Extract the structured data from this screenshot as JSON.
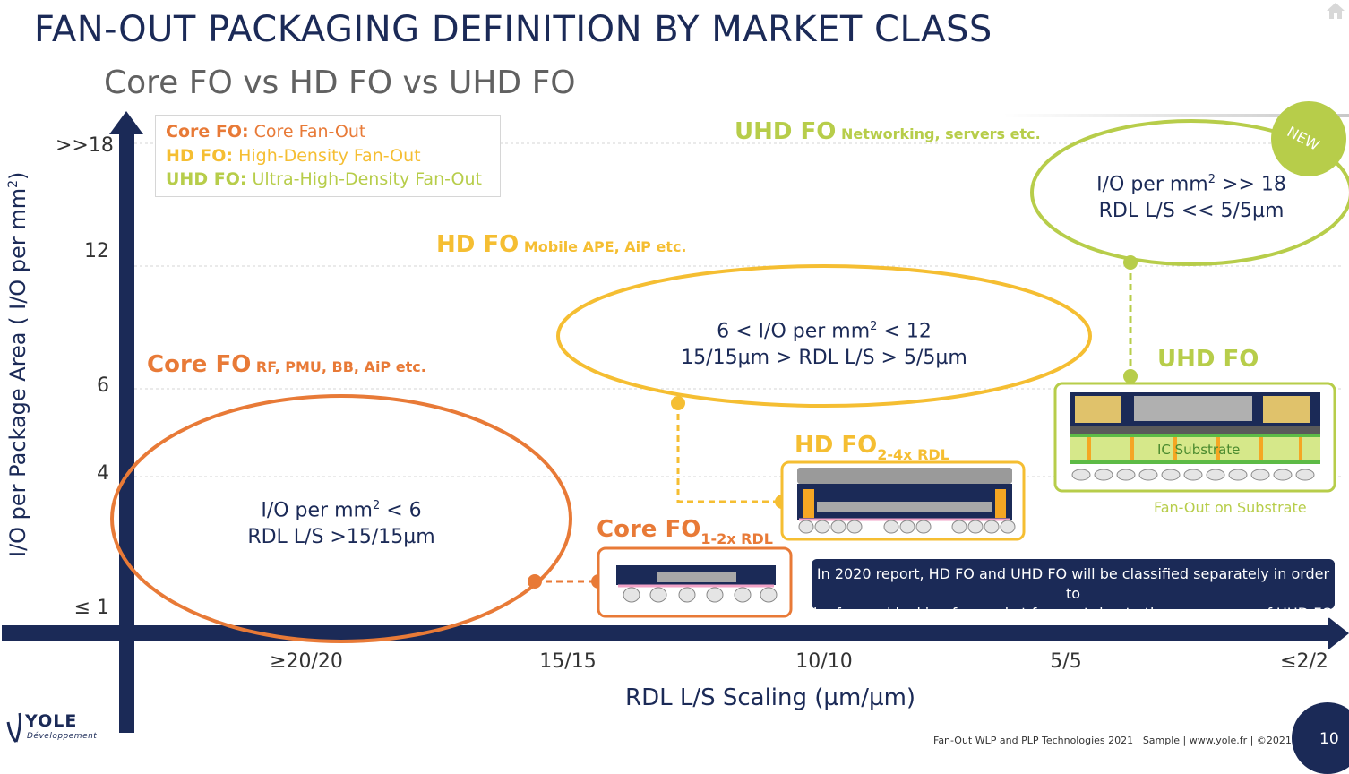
{
  "header": {
    "title": "FAN-OUT PACKAGING DEFINITION BY MARKET CLASS",
    "subtitle": "Core FO vs HD FO vs UHD FO"
  },
  "legend": {
    "core_key": "Core FO:",
    "core_desc": " Core Fan-Out",
    "hd_key": "HD FO:",
    "hd_desc": " High-Density Fan-Out",
    "uhd_key": "UHD FO:",
    "uhd_desc": " Ultra-High-Density Fan-Out"
  },
  "axes": {
    "ylabel_pre": "I/O per Package Area ( I/O per mm",
    "ylabel_sup": "2",
    "ylabel_post": ")",
    "xlabel": "RDL L/S Scaling (µm/µm)",
    "yticks": [
      ">>18",
      "12",
      "6",
      "4",
      "≤ 1"
    ],
    "xticks": [
      "≥20/20",
      "15/15",
      "10/10",
      "5/5",
      "≤2/2"
    ]
  },
  "categories": {
    "core_name": "Core FO",
    "core_apps": " RF, PMU, BB, AiP etc.",
    "hd_name": "HD FO",
    "hd_apps": " Mobile APE, AiP  etc.",
    "uhd_name": "UHD FO",
    "uhd_apps": " Networking, servers etc."
  },
  "ovals": {
    "core_line1_pre": "I/O per mm",
    "core_line1_sup": "2",
    "core_line1_post": " < 6",
    "core_line2": "RDL L/S >15/15µm",
    "hd_line1_pre": "6 < I/O per mm",
    "hd_line1_sup": "2",
    "hd_line1_post": " < 12",
    "hd_line2": "15/15µm > RDL L/S > 5/5µm",
    "uhd_line1_pre": "I/O per mm",
    "uhd_line1_sup": "2",
    "uhd_line1_post": " >> 18",
    "uhd_line2": "RDL L/S << 5/5µm",
    "new_badge": "NEW"
  },
  "packages": {
    "core_name": "Core FO",
    "core_sub": "1-2x RDL",
    "hd_name": "HD FO",
    "hd_sub": "2-4x RDL",
    "uhd_name": "UHD FO",
    "ic_substrate": "IC Substrate",
    "fos_caption": "Fan-Out on Substrate"
  },
  "note": {
    "line1": "In 2020 report, HD FO and UHD FO will be classified separately in order to",
    "line2": "be forward looking for market forecast due to the emergence of UHD FO"
  },
  "footer": {
    "text": "Fan-Out WLP and PLP Technologies 2021 | Sample | www.yole.fr | ©2021",
    "page": "10",
    "logo_name": "YOLE",
    "logo_sub": "Développement"
  },
  "colors": {
    "navy": "#1b2a57",
    "core": "#e87a37",
    "hd": "#f5be32",
    "uhd": "#b7cd4a",
    "gray_fill": "#c5c8d3"
  }
}
